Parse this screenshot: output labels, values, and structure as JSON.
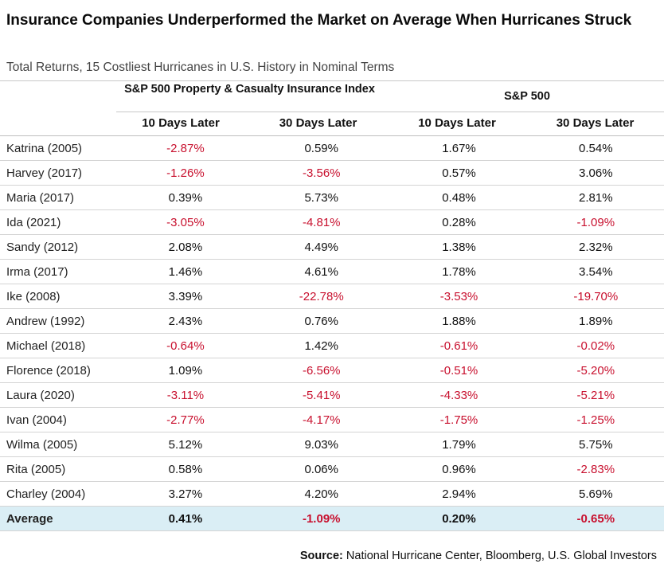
{
  "header": {
    "title": "Insurance Companies Underperformed the Market on Average When Hurricanes Struck",
    "subtitle": "Total Returns, 15 Costliest Hurricanes in U.S. History in Nominal Terms"
  },
  "chart_data": {
    "type": "table",
    "column_groups": [
      {
        "name": "S&P 500 Property & Casualty Insurance Index",
        "columns": [
          "10 Days Later",
          "30 Days Later"
        ]
      },
      {
        "name": "S&P 500",
        "columns": [
          "10 Days Later",
          "30 Days Later"
        ]
      }
    ],
    "column_headers": [
      "10 Days Later",
      "30 Days Later",
      "10 Days Later",
      "30 Days Later"
    ],
    "rows": [
      {
        "label": "Katrina (2005)",
        "values": [
          "-2.87%",
          "0.59%",
          "1.67%",
          "0.54%"
        ]
      },
      {
        "label": "Harvey (2017)",
        "values": [
          "-1.26%",
          "-3.56%",
          "0.57%",
          "3.06%"
        ]
      },
      {
        "label": "Maria (2017)",
        "values": [
          "0.39%",
          "5.73%",
          "0.48%",
          "2.81%"
        ]
      },
      {
        "label": "Ida (2021)",
        "values": [
          "-3.05%",
          "-4.81%",
          "0.28%",
          "-1.09%"
        ]
      },
      {
        "label": "Sandy (2012)",
        "values": [
          "2.08%",
          "4.49%",
          "1.38%",
          "2.32%"
        ]
      },
      {
        "label": "Irma (2017)",
        "values": [
          "1.46%",
          "4.61%",
          "1.78%",
          "3.54%"
        ]
      },
      {
        "label": "Ike (2008)",
        "values": [
          "3.39%",
          "-22.78%",
          "-3.53%",
          "-19.70%"
        ]
      },
      {
        "label": "Andrew (1992)",
        "values": [
          "2.43%",
          "0.76%",
          "1.88%",
          "1.89%"
        ]
      },
      {
        "label": "Michael (2018)",
        "values": [
          "-0.64%",
          "1.42%",
          "-0.61%",
          "-0.02%"
        ]
      },
      {
        "label": "Florence (2018)",
        "values": [
          "1.09%",
          "-6.56%",
          "-0.51%",
          "-5.20%"
        ]
      },
      {
        "label": "Laura (2020)",
        "values": [
          "-3.11%",
          "-5.41%",
          "-4.33%",
          "-5.21%"
        ]
      },
      {
        "label": "Ivan (2004)",
        "values": [
          "-2.77%",
          "-4.17%",
          "-1.75%",
          "-1.25%"
        ]
      },
      {
        "label": "Wilma (2005)",
        "values": [
          "5.12%",
          "9.03%",
          "1.79%",
          "5.75%"
        ]
      },
      {
        "label": "Rita (2005)",
        "values": [
          "0.58%",
          "0.06%",
          "0.96%",
          "-2.83%"
        ]
      },
      {
        "label": "Charley (2004)",
        "values": [
          "3.27%",
          "4.20%",
          "2.94%",
          "5.69%"
        ]
      }
    ],
    "average": {
      "label": "Average",
      "values": [
        "0.41%",
        "-1.09%",
        "0.20%",
        "-0.65%"
      ]
    }
  },
  "source": {
    "label": "Source:",
    "text": "National Hurricane Center, Bloomberg, U.S. Global Investors"
  },
  "colors": {
    "negative": "#c8102e",
    "average_row": "#daeef5"
  }
}
